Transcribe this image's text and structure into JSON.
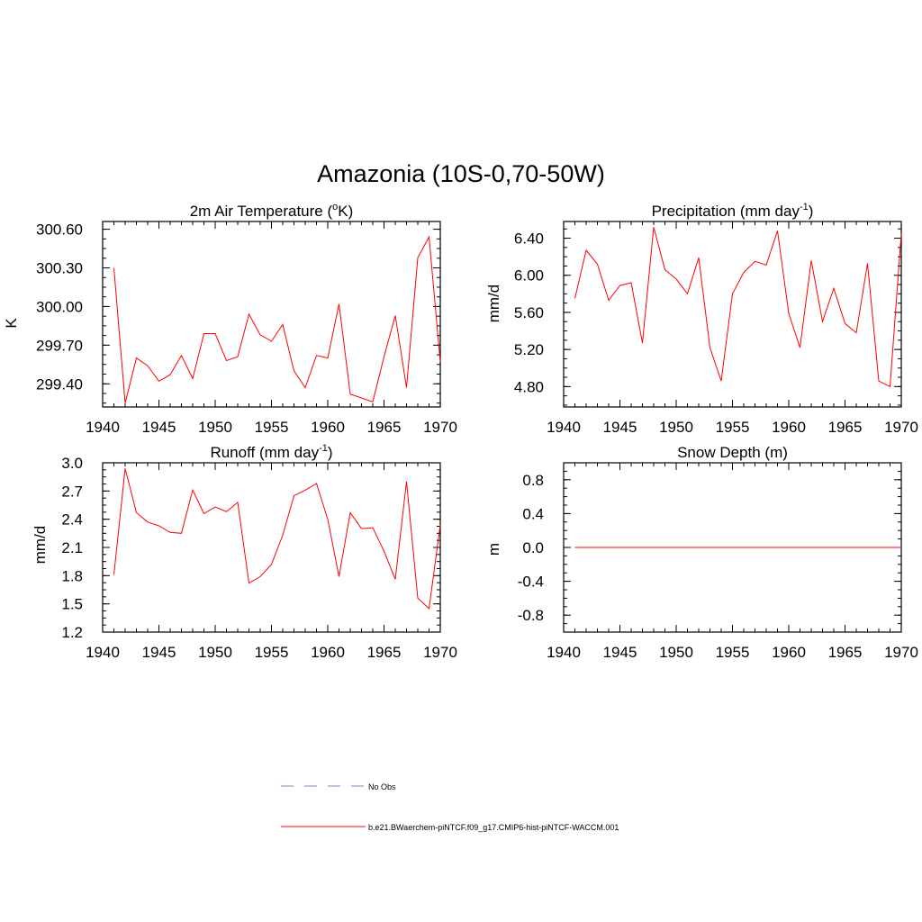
{
  "title": "Amazonia (10S-0,70-50W)",
  "colors": {
    "series": "#ff0000",
    "obs": "#9999dd",
    "axis": "#000000"
  },
  "legend": {
    "obs_label": "No Obs",
    "model_label": "b.e21.BWaerchem-piNTCF.f09_g17.CMIP6-hist-piNTCF-WACCM.001"
  },
  "chart_data": [
    {
      "type": "line",
      "title_main": "2m Air Temperature (",
      "title_sup1": "o",
      "title_mid": "K)",
      "ylabel": "K",
      "xlim": [
        1940,
        1970
      ],
      "ylim": [
        299.22,
        300.66
      ],
      "xticks": [
        1940,
        1945,
        1950,
        1955,
        1960,
        1965,
        1970
      ],
      "yticks": [
        "299.40",
        "299.70",
        "300.00",
        "300.30",
        "300.60"
      ],
      "grid": false,
      "series": [
        {
          "x": [
            1941,
            1942,
            1943,
            1944,
            1945,
            1946,
            1947,
            1948,
            1949,
            1950,
            1951,
            1952,
            1953,
            1954,
            1955,
            1956,
            1957,
            1958,
            1959,
            1960,
            1961,
            1962,
            1963,
            1964,
            1965,
            1966,
            1967,
            1968,
            1969,
            1970
          ],
          "values": [
            300.3,
            299.25,
            299.6,
            299.54,
            299.42,
            299.47,
            299.62,
            299.44,
            299.79,
            299.79,
            299.58,
            299.61,
            299.94,
            299.78,
            299.73,
            299.86,
            299.5,
            299.37,
            299.62,
            299.6,
            300.02,
            299.32,
            299.29,
            299.26,
            299.61,
            299.93,
            299.37,
            300.38,
            300.54,
            299.57
          ]
        }
      ]
    },
    {
      "type": "line",
      "title_main": "Precipitation (mm day",
      "title_sup1": "-1",
      "title_mid": ")",
      "ylabel": "mm/d",
      "xlim": [
        1940,
        1970
      ],
      "ylim": [
        4.58,
        6.58
      ],
      "xticks": [
        1940,
        1945,
        1950,
        1955,
        1960,
        1965,
        1970
      ],
      "yticks": [
        "4.80",
        "5.20",
        "5.60",
        "6.00",
        "6.40"
      ],
      "grid": false,
      "series": [
        {
          "x": [
            1941,
            1942,
            1943,
            1944,
            1945,
            1946,
            1947,
            1948,
            1949,
            1950,
            1951,
            1952,
            1953,
            1954,
            1955,
            1956,
            1957,
            1958,
            1959,
            1960,
            1961,
            1962,
            1963,
            1964,
            1965,
            1966,
            1967,
            1968,
            1969,
            1970
          ],
          "values": [
            5.75,
            6.27,
            6.12,
            5.73,
            5.89,
            5.92,
            5.27,
            6.52,
            6.06,
            5.96,
            5.8,
            6.19,
            5.22,
            4.86,
            5.8,
            6.03,
            6.15,
            6.11,
            6.48,
            5.59,
            5.22,
            6.16,
            5.5,
            5.86,
            5.48,
            5.38,
            6.13,
            4.86,
            4.8,
            6.45
          ]
        }
      ]
    },
    {
      "type": "line",
      "title_main": "Runoff (mm day",
      "title_sup1": "-1",
      "title_mid": ")",
      "ylabel": "mm/d",
      "xlim": [
        1940,
        1970
      ],
      "ylim": [
        1.2,
        3.0
      ],
      "xticks": [
        1940,
        1945,
        1950,
        1955,
        1960,
        1965,
        1970
      ],
      "yticks": [
        "1.2",
        "1.5",
        "1.8",
        "2.1",
        "2.4",
        "2.7",
        "3.0"
      ],
      "grid": false,
      "series": [
        {
          "x": [
            1941,
            1942,
            1943,
            1944,
            1945,
            1946,
            1947,
            1948,
            1949,
            1950,
            1951,
            1952,
            1953,
            1954,
            1955,
            1956,
            1957,
            1958,
            1959,
            1960,
            1961,
            1962,
            1963,
            1964,
            1965,
            1966,
            1967,
            1968,
            1969,
            1970
          ],
          "values": [
            1.81,
            2.94,
            2.47,
            2.37,
            2.33,
            2.26,
            2.25,
            2.71,
            2.46,
            2.53,
            2.48,
            2.58,
            1.72,
            1.79,
            1.92,
            2.23,
            2.65,
            2.71,
            2.78,
            2.4,
            1.79,
            2.47,
            2.3,
            2.31,
            2.06,
            1.76,
            2.8,
            1.56,
            1.45,
            2.34
          ]
        }
      ]
    },
    {
      "type": "line",
      "title_main": "Snow Depth (m)",
      "title_sup1": "",
      "title_mid": "",
      "ylabel": "m",
      "xlim": [
        1940,
        1970
      ],
      "ylim": [
        -1.0,
        1.0
      ],
      "xticks": [
        1940,
        1945,
        1950,
        1955,
        1960,
        1965,
        1970
      ],
      "yticks": [
        "-0.8",
        "-0.4",
        "0.0",
        "0.4",
        "0.8"
      ],
      "grid": false,
      "series": [
        {
          "x": [
            1941,
            1942,
            1943,
            1944,
            1945,
            1946,
            1947,
            1948,
            1949,
            1950,
            1951,
            1952,
            1953,
            1954,
            1955,
            1956,
            1957,
            1958,
            1959,
            1960,
            1961,
            1962,
            1963,
            1964,
            1965,
            1966,
            1967,
            1968,
            1969,
            1970
          ],
          "values": [
            0,
            0,
            0,
            0,
            0,
            0,
            0,
            0,
            0,
            0,
            0,
            0,
            0,
            0,
            0,
            0,
            0,
            0,
            0,
            0,
            0,
            0,
            0,
            0,
            0,
            0,
            0,
            0,
            0,
            0
          ]
        }
      ]
    }
  ]
}
